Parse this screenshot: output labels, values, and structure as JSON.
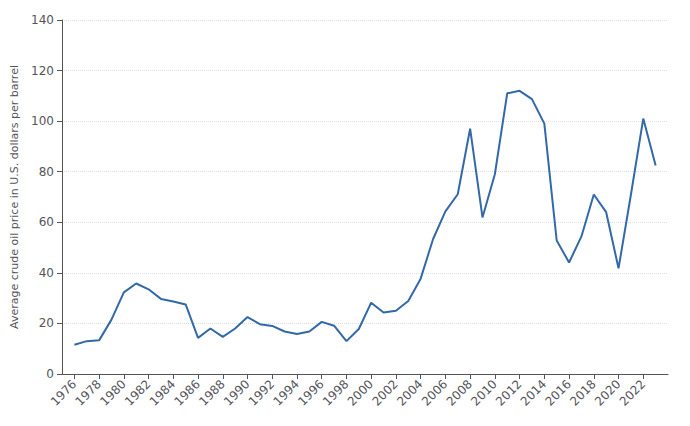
{
  "chart_data": {
    "type": "line",
    "ylabel": "Average crude oil price in U.S. dollars per barrel",
    "x": [
      1976,
      1977,
      1978,
      1979,
      1980,
      1981,
      1982,
      1983,
      1984,
      1985,
      1986,
      1987,
      1988,
      1989,
      1990,
      1991,
      1992,
      1993,
      1994,
      1995,
      1996,
      1997,
      1998,
      1999,
      2000,
      2001,
      2002,
      2003,
      2004,
      2005,
      2006,
      2007,
      2008,
      2009,
      2010,
      2011,
      2012,
      2013,
      2014,
      2015,
      2016,
      2017,
      2018,
      2019,
      2020,
      2021,
      2022,
      2023
    ],
    "values": [
      11.6,
      13.0,
      13.3,
      21.5,
      32.3,
      35.8,
      33.5,
      29.7,
      28.7,
      27.5,
      14.3,
      18.0,
      14.7,
      18.0,
      22.5,
      19.7,
      19.0,
      16.8,
      15.8,
      16.8,
      20.6,
      19.1,
      13.0,
      17.8,
      28.2,
      24.3,
      25.0,
      28.9,
      37.7,
      53.3,
      64.3,
      71.1,
      97.0,
      61.9,
      79.0,
      111.0,
      112.0,
      108.7,
      99.0,
      52.8,
      44.1,
      54.4,
      71.0,
      64.0,
      41.8,
      70.9,
      101.0,
      82.5
    ],
    "color": "#3369a8",
    "xlim": [
      1975,
      2024
    ],
    "xticks": [
      1976,
      1978,
      1980,
      1982,
      1984,
      1986,
      1988,
      1990,
      1992,
      1994,
      1996,
      1998,
      2000,
      2002,
      2004,
      2006,
      2008,
      2010,
      2012,
      2014,
      2016,
      2018,
      2020,
      2022
    ],
    "ylim": [
      0,
      140
    ],
    "yticks": [
      0,
      20,
      40,
      60,
      80,
      100,
      120,
      140
    ],
    "grid": true
  }
}
